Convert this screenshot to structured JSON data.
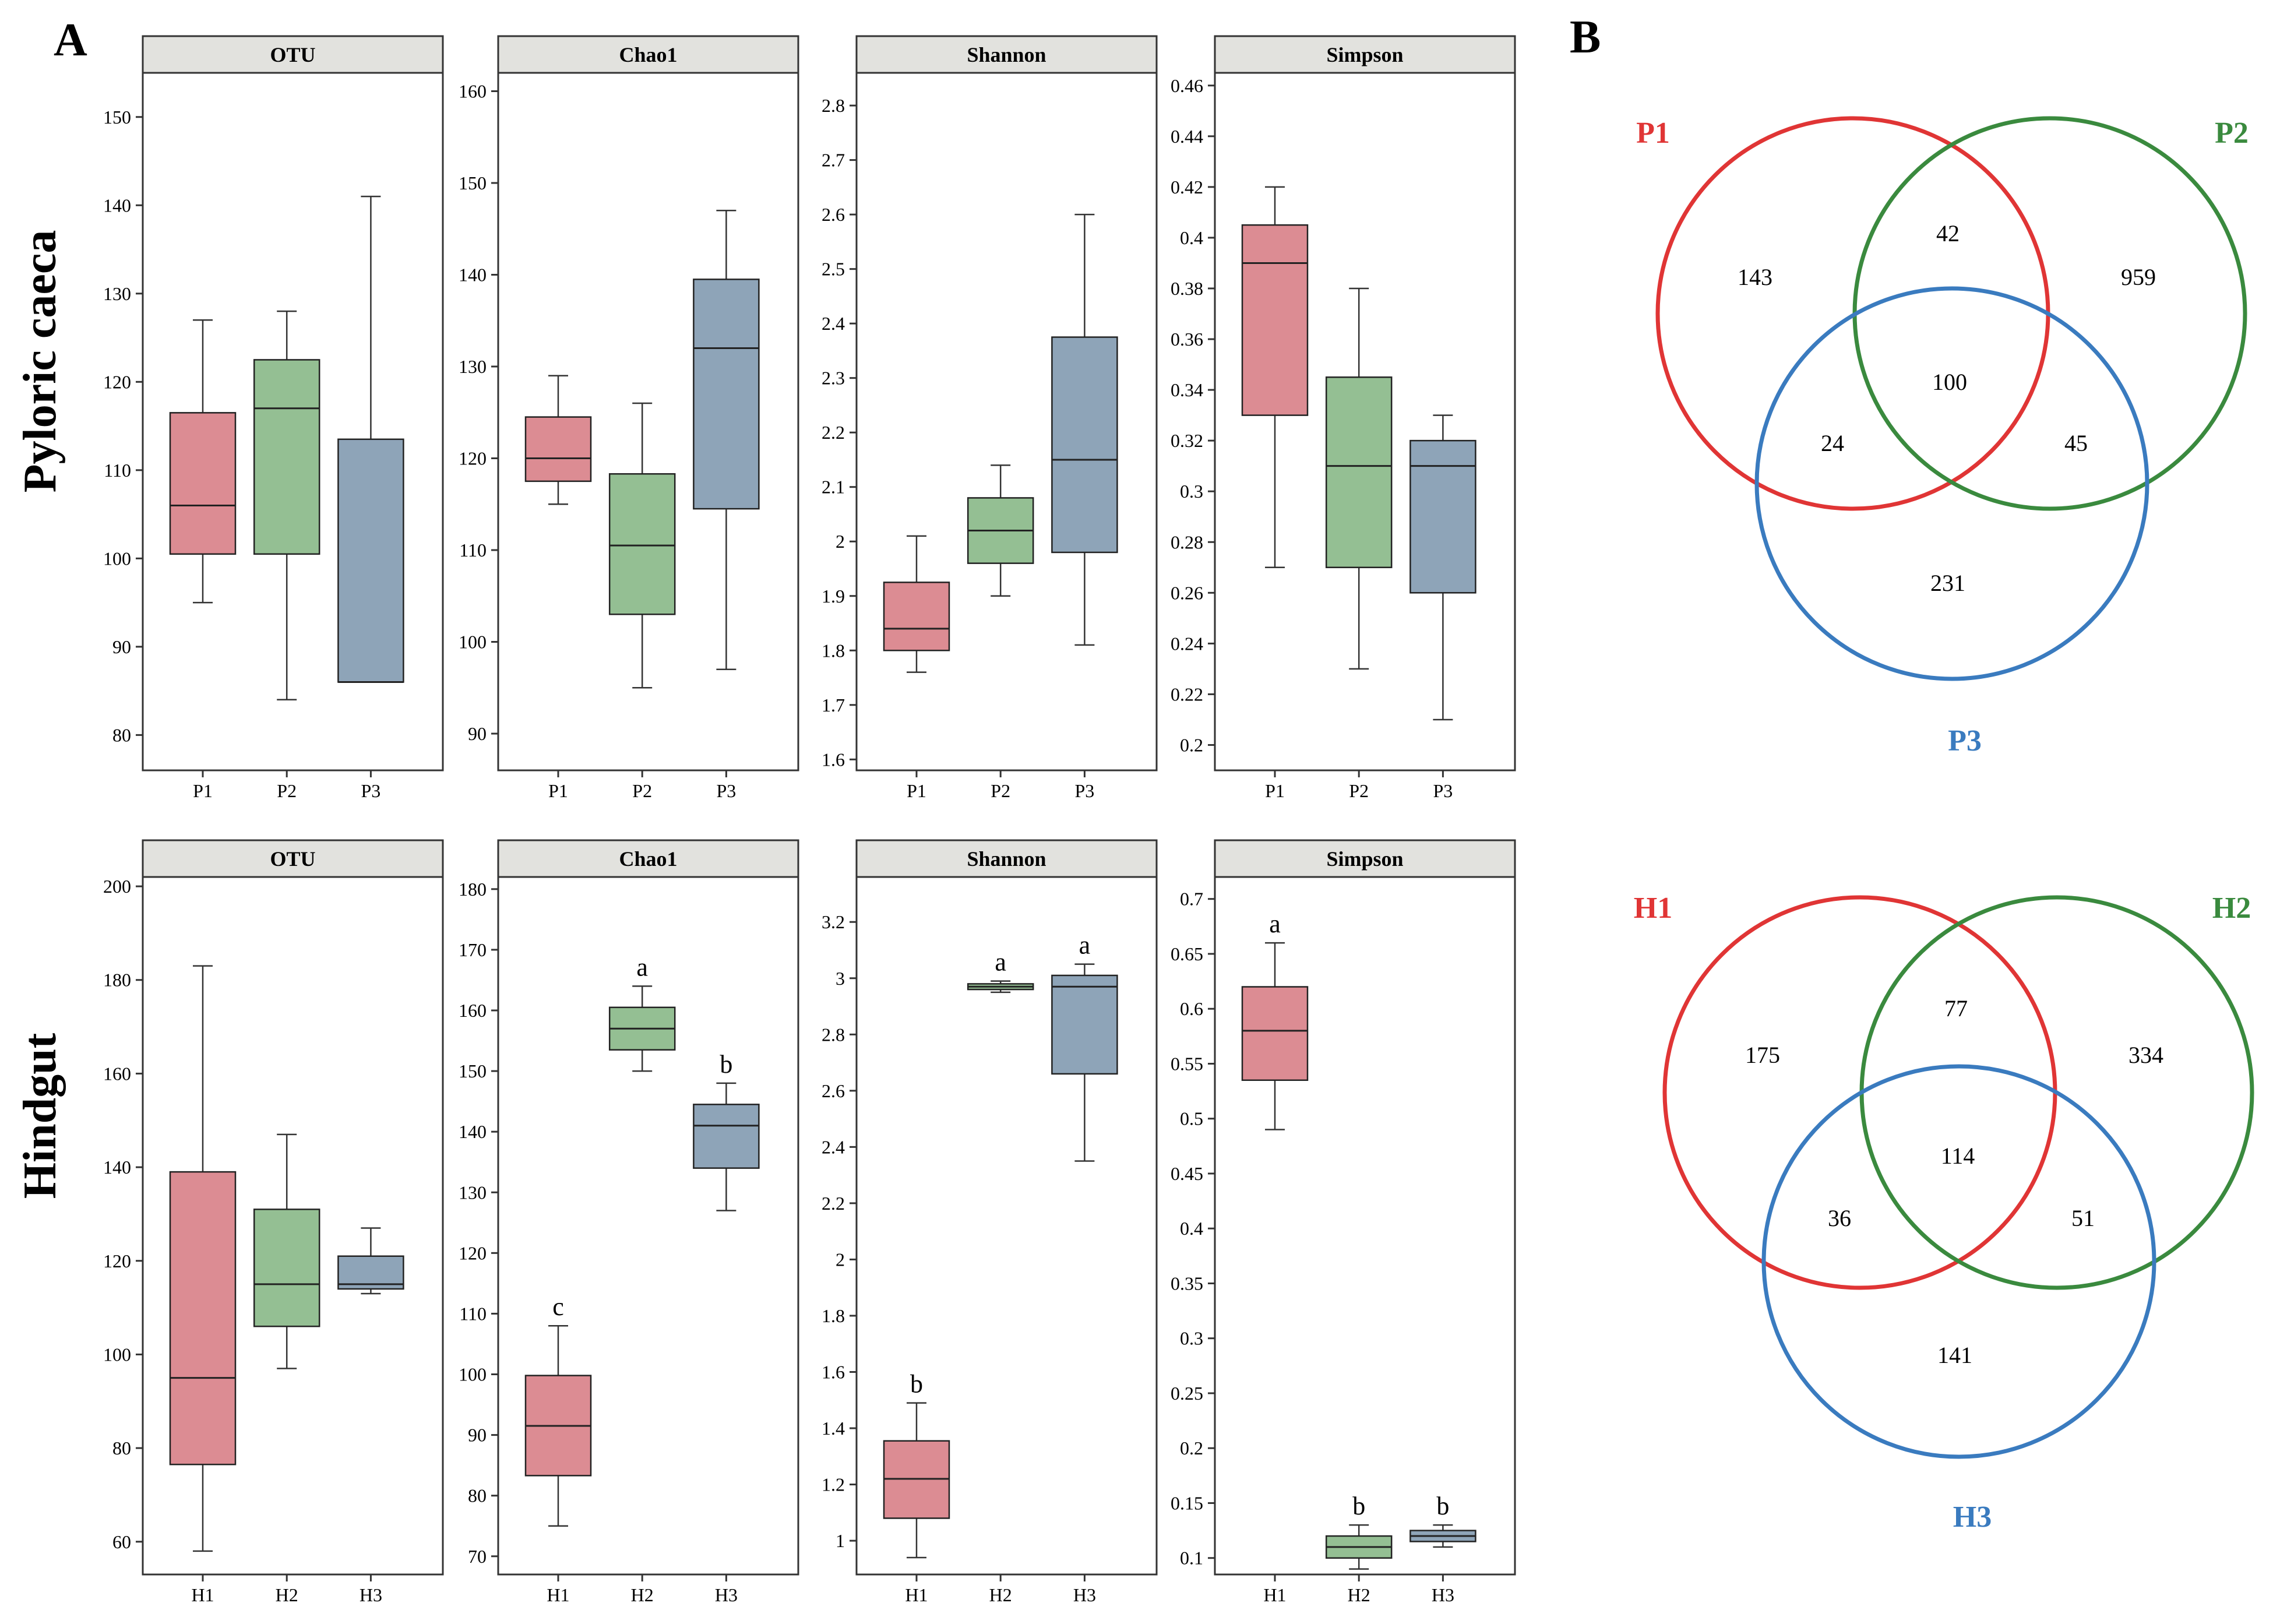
{
  "figure": {
    "panel_a_label": "A",
    "panel_b_label": "B",
    "row_labels": [
      "Pyloric caeca",
      "Hindgut"
    ]
  },
  "colors": {
    "group1": "#dc8c93",
    "group2": "#94bf93",
    "group3": "#8ea4b8",
    "strip": "#e2e2de",
    "venn1": "#e03535",
    "venn2": "#3a8a3e",
    "venn3": "#3a7bbf"
  },
  "chart_data": [
    {
      "type": "box",
      "region": "Pyloric caeca",
      "title": "OTU",
      "categories": [
        "P1",
        "P2",
        "P3"
      ],
      "ylim": [
        76,
        155
      ],
      "yticks": [
        80,
        90,
        100,
        110,
        120,
        130,
        140,
        150
      ],
      "ytick_labels": [
        "80",
        "90",
        "100",
        "110",
        "120",
        "130",
        "140",
        "150"
      ],
      "boxes": [
        {
          "whisker_low": 95,
          "q1": 100.5,
          "median": 106,
          "q3": 116.5,
          "whisker_high": 127,
          "letter": ""
        },
        {
          "whisker_low": 84,
          "q1": 100.5,
          "median": 117,
          "q3": 122.5,
          "whisker_high": 128,
          "letter": ""
        },
        {
          "whisker_low": 86,
          "q1": 86,
          "median": 86,
          "q3": 113.5,
          "whisker_high": 141,
          "letter": ""
        }
      ]
    },
    {
      "type": "box",
      "region": "Pyloric caeca",
      "title": "Chao1",
      "categories": [
        "P1",
        "P2",
        "P3"
      ],
      "ylim": [
        86,
        162
      ],
      "yticks": [
        90,
        100,
        110,
        120,
        130,
        140,
        150,
        160
      ],
      "ytick_labels": [
        "90",
        "100",
        "110",
        "120",
        "130",
        "140",
        "150",
        "160"
      ],
      "boxes": [
        {
          "whisker_low": 115,
          "q1": 117.5,
          "median": 120,
          "q3": 124.5,
          "whisker_high": 129,
          "letter": ""
        },
        {
          "whisker_low": 95,
          "q1": 103,
          "median": 110.5,
          "q3": 118.3,
          "whisker_high": 126,
          "letter": ""
        },
        {
          "whisker_low": 97,
          "q1": 114.5,
          "median": 132,
          "q3": 139.5,
          "whisker_high": 147,
          "letter": ""
        }
      ]
    },
    {
      "type": "box",
      "region": "Pyloric caeca",
      "title": "Shannon",
      "categories": [
        "P1",
        "P2",
        "P3"
      ],
      "ylim": [
        1.58,
        2.86
      ],
      "yticks": [
        1.6,
        1.7,
        1.8,
        1.9,
        2.0,
        2.1,
        2.2,
        2.3,
        2.4,
        2.5,
        2.6,
        2.7,
        2.8
      ],
      "ytick_labels": [
        "1.6",
        "1.7",
        "1.8",
        "1.9",
        "2",
        "2.1",
        "2.2",
        "2.3",
        "2.4",
        "2.5",
        "2.6",
        "2.7",
        "2.8"
      ],
      "boxes": [
        {
          "whisker_low": 1.76,
          "q1": 1.8,
          "median": 1.84,
          "q3": 1.925,
          "whisker_high": 2.01,
          "letter": ""
        },
        {
          "whisker_low": 1.9,
          "q1": 1.96,
          "median": 2.02,
          "q3": 2.08,
          "whisker_high": 2.14,
          "letter": ""
        },
        {
          "whisker_low": 1.81,
          "q1": 1.98,
          "median": 2.15,
          "q3": 2.375,
          "whisker_high": 2.6,
          "letter": ""
        }
      ]
    },
    {
      "type": "box",
      "region": "Pyloric caeca",
      "title": "Simpson",
      "categories": [
        "P1",
        "P2",
        "P3"
      ],
      "ylim": [
        0.19,
        0.465
      ],
      "yticks": [
        0.2,
        0.22,
        0.24,
        0.26,
        0.28,
        0.3,
        0.32,
        0.34,
        0.36,
        0.38,
        0.4,
        0.42,
        0.44,
        0.46
      ],
      "ytick_labels": [
        "0.2",
        "0.22",
        "0.24",
        "0.26",
        "0.28",
        "0.3",
        "0.32",
        "0.34",
        "0.36",
        "0.38",
        "0.4",
        "0.42",
        "0.44",
        "0.46"
      ],
      "boxes": [
        {
          "whisker_low": 0.27,
          "q1": 0.33,
          "median": 0.39,
          "q3": 0.405,
          "whisker_high": 0.42,
          "letter": ""
        },
        {
          "whisker_low": 0.23,
          "q1": 0.27,
          "median": 0.31,
          "q3": 0.345,
          "whisker_high": 0.38,
          "letter": ""
        },
        {
          "whisker_low": 0.21,
          "q1": 0.26,
          "median": 0.31,
          "q3": 0.32,
          "whisker_high": 0.33,
          "letter": ""
        }
      ]
    },
    {
      "type": "box",
      "region": "Hindgut",
      "title": "OTU",
      "categories": [
        "H1",
        "H2",
        "H3"
      ],
      "ylim": [
        53,
        202
      ],
      "yticks": [
        60,
        80,
        100,
        120,
        140,
        160,
        180,
        200
      ],
      "ytick_labels": [
        "60",
        "80",
        "100",
        "120",
        "140",
        "160",
        "180",
        "200"
      ],
      "boxes": [
        {
          "whisker_low": 58,
          "q1": 76.5,
          "median": 95,
          "q3": 139,
          "whisker_high": 183,
          "letter": ""
        },
        {
          "whisker_low": 97,
          "q1": 106,
          "median": 115,
          "q3": 131,
          "whisker_high": 147,
          "letter": ""
        },
        {
          "whisker_low": 113,
          "q1": 114,
          "median": 115,
          "q3": 121,
          "whisker_high": 127,
          "letter": ""
        }
      ]
    },
    {
      "type": "box",
      "region": "Hindgut",
      "title": "Chao1",
      "categories": [
        "H1",
        "H2",
        "H3"
      ],
      "ylim": [
        67,
        182
      ],
      "yticks": [
        70,
        80,
        90,
        100,
        110,
        120,
        130,
        140,
        150,
        160,
        170,
        180
      ],
      "ytick_labels": [
        "70",
        "80",
        "90",
        "100",
        "110",
        "120",
        "130",
        "140",
        "150",
        "160",
        "170",
        "180"
      ],
      "boxes": [
        {
          "whisker_low": 75,
          "q1": 83.3,
          "median": 91.5,
          "q3": 99.8,
          "whisker_high": 108,
          "letter": "c"
        },
        {
          "whisker_low": 150,
          "q1": 153.5,
          "median": 157,
          "q3": 160.5,
          "whisker_high": 164,
          "letter": "a"
        },
        {
          "whisker_low": 127,
          "q1": 134,
          "median": 141,
          "q3": 144.5,
          "whisker_high": 148,
          "letter": "b"
        }
      ]
    },
    {
      "type": "box",
      "region": "Hindgut",
      "title": "Shannon",
      "categories": [
        "H1",
        "H2",
        "H3"
      ],
      "ylim": [
        0.88,
        3.36
      ],
      "yticks": [
        1.0,
        1.2,
        1.4,
        1.6,
        1.8,
        2.0,
        2.2,
        2.4,
        2.6,
        2.8,
        3.0,
        3.2
      ],
      "ytick_labels": [
        "1",
        "1.2",
        "1.4",
        "1.6",
        "1.8",
        "2",
        "2.2",
        "2.4",
        "2.6",
        "2.8",
        "3",
        "3.2"
      ],
      "boxes": [
        {
          "whisker_low": 0.94,
          "q1": 1.08,
          "median": 1.22,
          "q3": 1.355,
          "whisker_high": 1.49,
          "letter": "b"
        },
        {
          "whisker_low": 2.95,
          "q1": 2.96,
          "median": 2.97,
          "q3": 2.98,
          "whisker_high": 2.99,
          "letter": "a"
        },
        {
          "whisker_low": 2.35,
          "q1": 2.66,
          "median": 2.97,
          "q3": 3.01,
          "whisker_high": 3.05,
          "letter": "a"
        }
      ]
    },
    {
      "type": "box",
      "region": "Hindgut",
      "title": "Simpson",
      "categories": [
        "H1",
        "H2",
        "H3"
      ],
      "ylim": [
        0.085,
        0.72
      ],
      "yticks": [
        0.1,
        0.15,
        0.2,
        0.25,
        0.3,
        0.35,
        0.4,
        0.45,
        0.5,
        0.55,
        0.6,
        0.65,
        0.7
      ],
      "ytick_labels": [
        "0.1",
        "0.15",
        "0.2",
        "0.25",
        "0.3",
        "0.35",
        "0.4",
        "0.45",
        "0.5",
        "0.55",
        "0.6",
        "0.65",
        "0.7"
      ],
      "boxes": [
        {
          "whisker_low": 0.49,
          "q1": 0.535,
          "median": 0.58,
          "q3": 0.62,
          "whisker_high": 0.66,
          "letter": "a"
        },
        {
          "whisker_low": 0.09,
          "q1": 0.1,
          "median": 0.11,
          "q3": 0.12,
          "whisker_high": 0.13,
          "letter": "b"
        },
        {
          "whisker_low": 0.11,
          "q1": 0.115,
          "median": 0.12,
          "q3": 0.125,
          "whisker_high": 0.13,
          "letter": "b"
        }
      ]
    },
    {
      "type": "venn",
      "region": "Pyloric caeca",
      "sets": [
        "P1",
        "P2",
        "P3"
      ],
      "regions": {
        "only_1": 143,
        "only_2": 959,
        "only_3": 231,
        "1_2": 42,
        "1_3": 24,
        "2_3": 45,
        "all": 100
      }
    },
    {
      "type": "venn",
      "region": "Hindgut",
      "sets": [
        "H1",
        "H2",
        "H3"
      ],
      "regions": {
        "only_1": 175,
        "only_2": 334,
        "only_3": 141,
        "1_2": 77,
        "1_3": 36,
        "2_3": 51,
        "all": 114
      }
    }
  ]
}
